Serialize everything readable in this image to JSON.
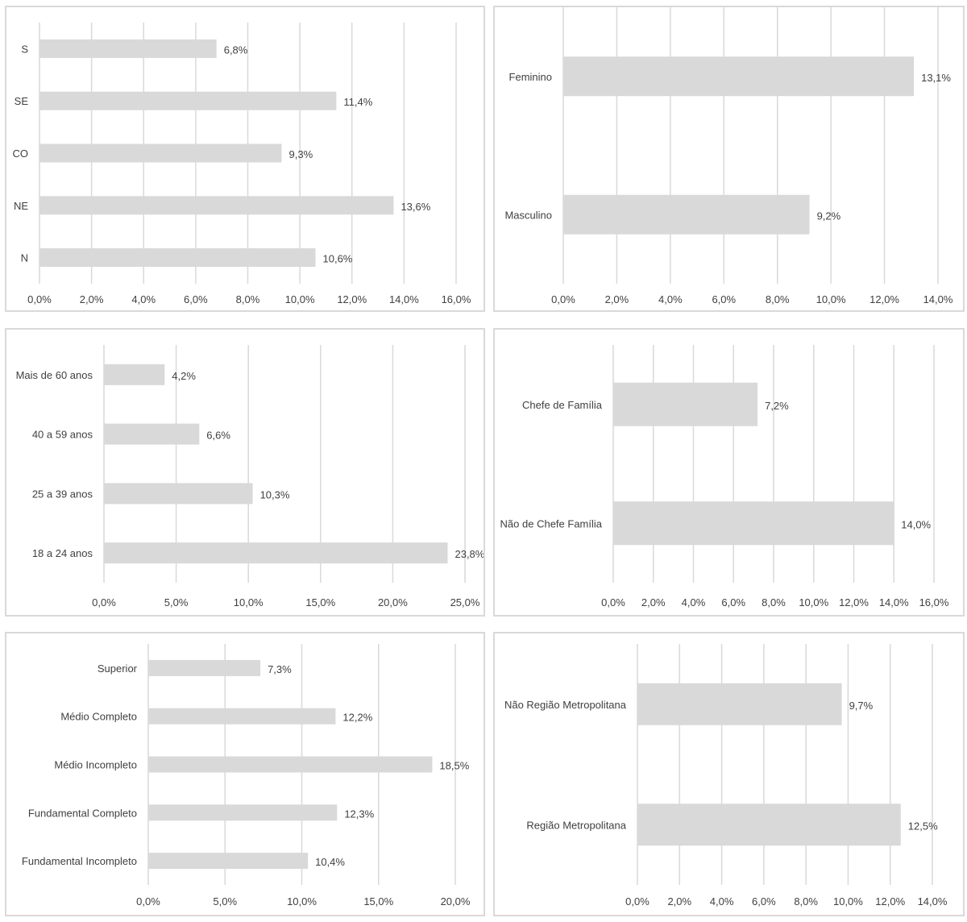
{
  "colors": {
    "bar": "#d9d9d9",
    "grid": "#d9d9d9",
    "text": "#404040",
    "border": "#d9d9d9"
  },
  "chart_data": [
    {
      "type": "bar",
      "orientation": "horizontal",
      "title": "",
      "categories": [
        "S",
        "SE",
        "CO",
        "NE",
        "N"
      ],
      "values": [
        6.8,
        11.4,
        9.3,
        13.6,
        10.6
      ],
      "value_labels": [
        "6,8%",
        "11,4%",
        "9,3%",
        "13,6%",
        "10,6%"
      ],
      "xlim": [
        0,
        16
      ],
      "xticks": [
        "0,0%",
        "2,0%",
        "4,0%",
        "6,0%",
        "8,0%",
        "10,0%",
        "12,0%",
        "14,0%",
        "16,0%"
      ],
      "grid": true,
      "legend": "none"
    },
    {
      "type": "bar",
      "orientation": "horizontal",
      "title": "",
      "categories": [
        "Feminino",
        "Masculino"
      ],
      "values": [
        13.1,
        9.2
      ],
      "value_labels": [
        "13,1%",
        "9,2%"
      ],
      "xlim": [
        0,
        14
      ],
      "xticks": [
        "0,0%",
        "2,0%",
        "4,0%",
        "6,0%",
        "8,0%",
        "10,0%",
        "12,0%",
        "14,0%"
      ],
      "grid": true,
      "legend": "none"
    },
    {
      "type": "bar",
      "orientation": "horizontal",
      "title": "",
      "categories": [
        "Mais de 60 anos",
        "40 a 59 anos",
        "25 a 39 anos",
        "18 a 24 anos"
      ],
      "values": [
        4.2,
        6.6,
        10.3,
        23.8
      ],
      "value_labels": [
        "4,2%",
        "6,6%",
        "10,3%",
        "23,8%"
      ],
      "xlim": [
        0,
        25
      ],
      "xticks": [
        "0,0%",
        "5,0%",
        "10,0%",
        "15,0%",
        "20,0%",
        "25,0%"
      ],
      "grid": true,
      "legend": "none"
    },
    {
      "type": "bar",
      "orientation": "horizontal",
      "title": "",
      "categories": [
        "Chefe de Família",
        "Não de Chefe Família"
      ],
      "values": [
        7.2,
        14.0
      ],
      "value_labels": [
        "7,2%",
        "14,0%"
      ],
      "xlim": [
        0,
        16
      ],
      "xticks": [
        "0,0%",
        "2,0%",
        "4,0%",
        "6,0%",
        "8,0%",
        "10,0%",
        "12,0%",
        "14,0%",
        "16,0%"
      ],
      "grid": true,
      "legend": "none"
    },
    {
      "type": "bar",
      "orientation": "horizontal",
      "title": "",
      "categories": [
        "Superior",
        "Médio Completo",
        "Médio Incompleto",
        "Fundamental Completo",
        "Fundamental Incompleto"
      ],
      "values": [
        7.3,
        12.2,
        18.5,
        12.3,
        10.4
      ],
      "value_labels": [
        "7,3%",
        "12,2%",
        "18,5%",
        "12,3%",
        "10,4%"
      ],
      "xlim": [
        0,
        20
      ],
      "xticks": [
        "0,0%",
        "5,0%",
        "10,0%",
        "15,0%",
        "20,0%"
      ],
      "grid": true,
      "legend": "none"
    },
    {
      "type": "bar",
      "orientation": "horizontal",
      "title": "",
      "categories": [
        "Não Região Metropolitana",
        "Região Metropolitana"
      ],
      "values": [
        9.7,
        12.5
      ],
      "value_labels": [
        "9,7%",
        "12,5%"
      ],
      "xlim": [
        0,
        14
      ],
      "xticks": [
        "0,0%",
        "2,0%",
        "4,0%",
        "6,0%",
        "8,0%",
        "10,0%",
        "12,0%",
        "14,0%"
      ],
      "grid": true,
      "legend": "none"
    }
  ]
}
